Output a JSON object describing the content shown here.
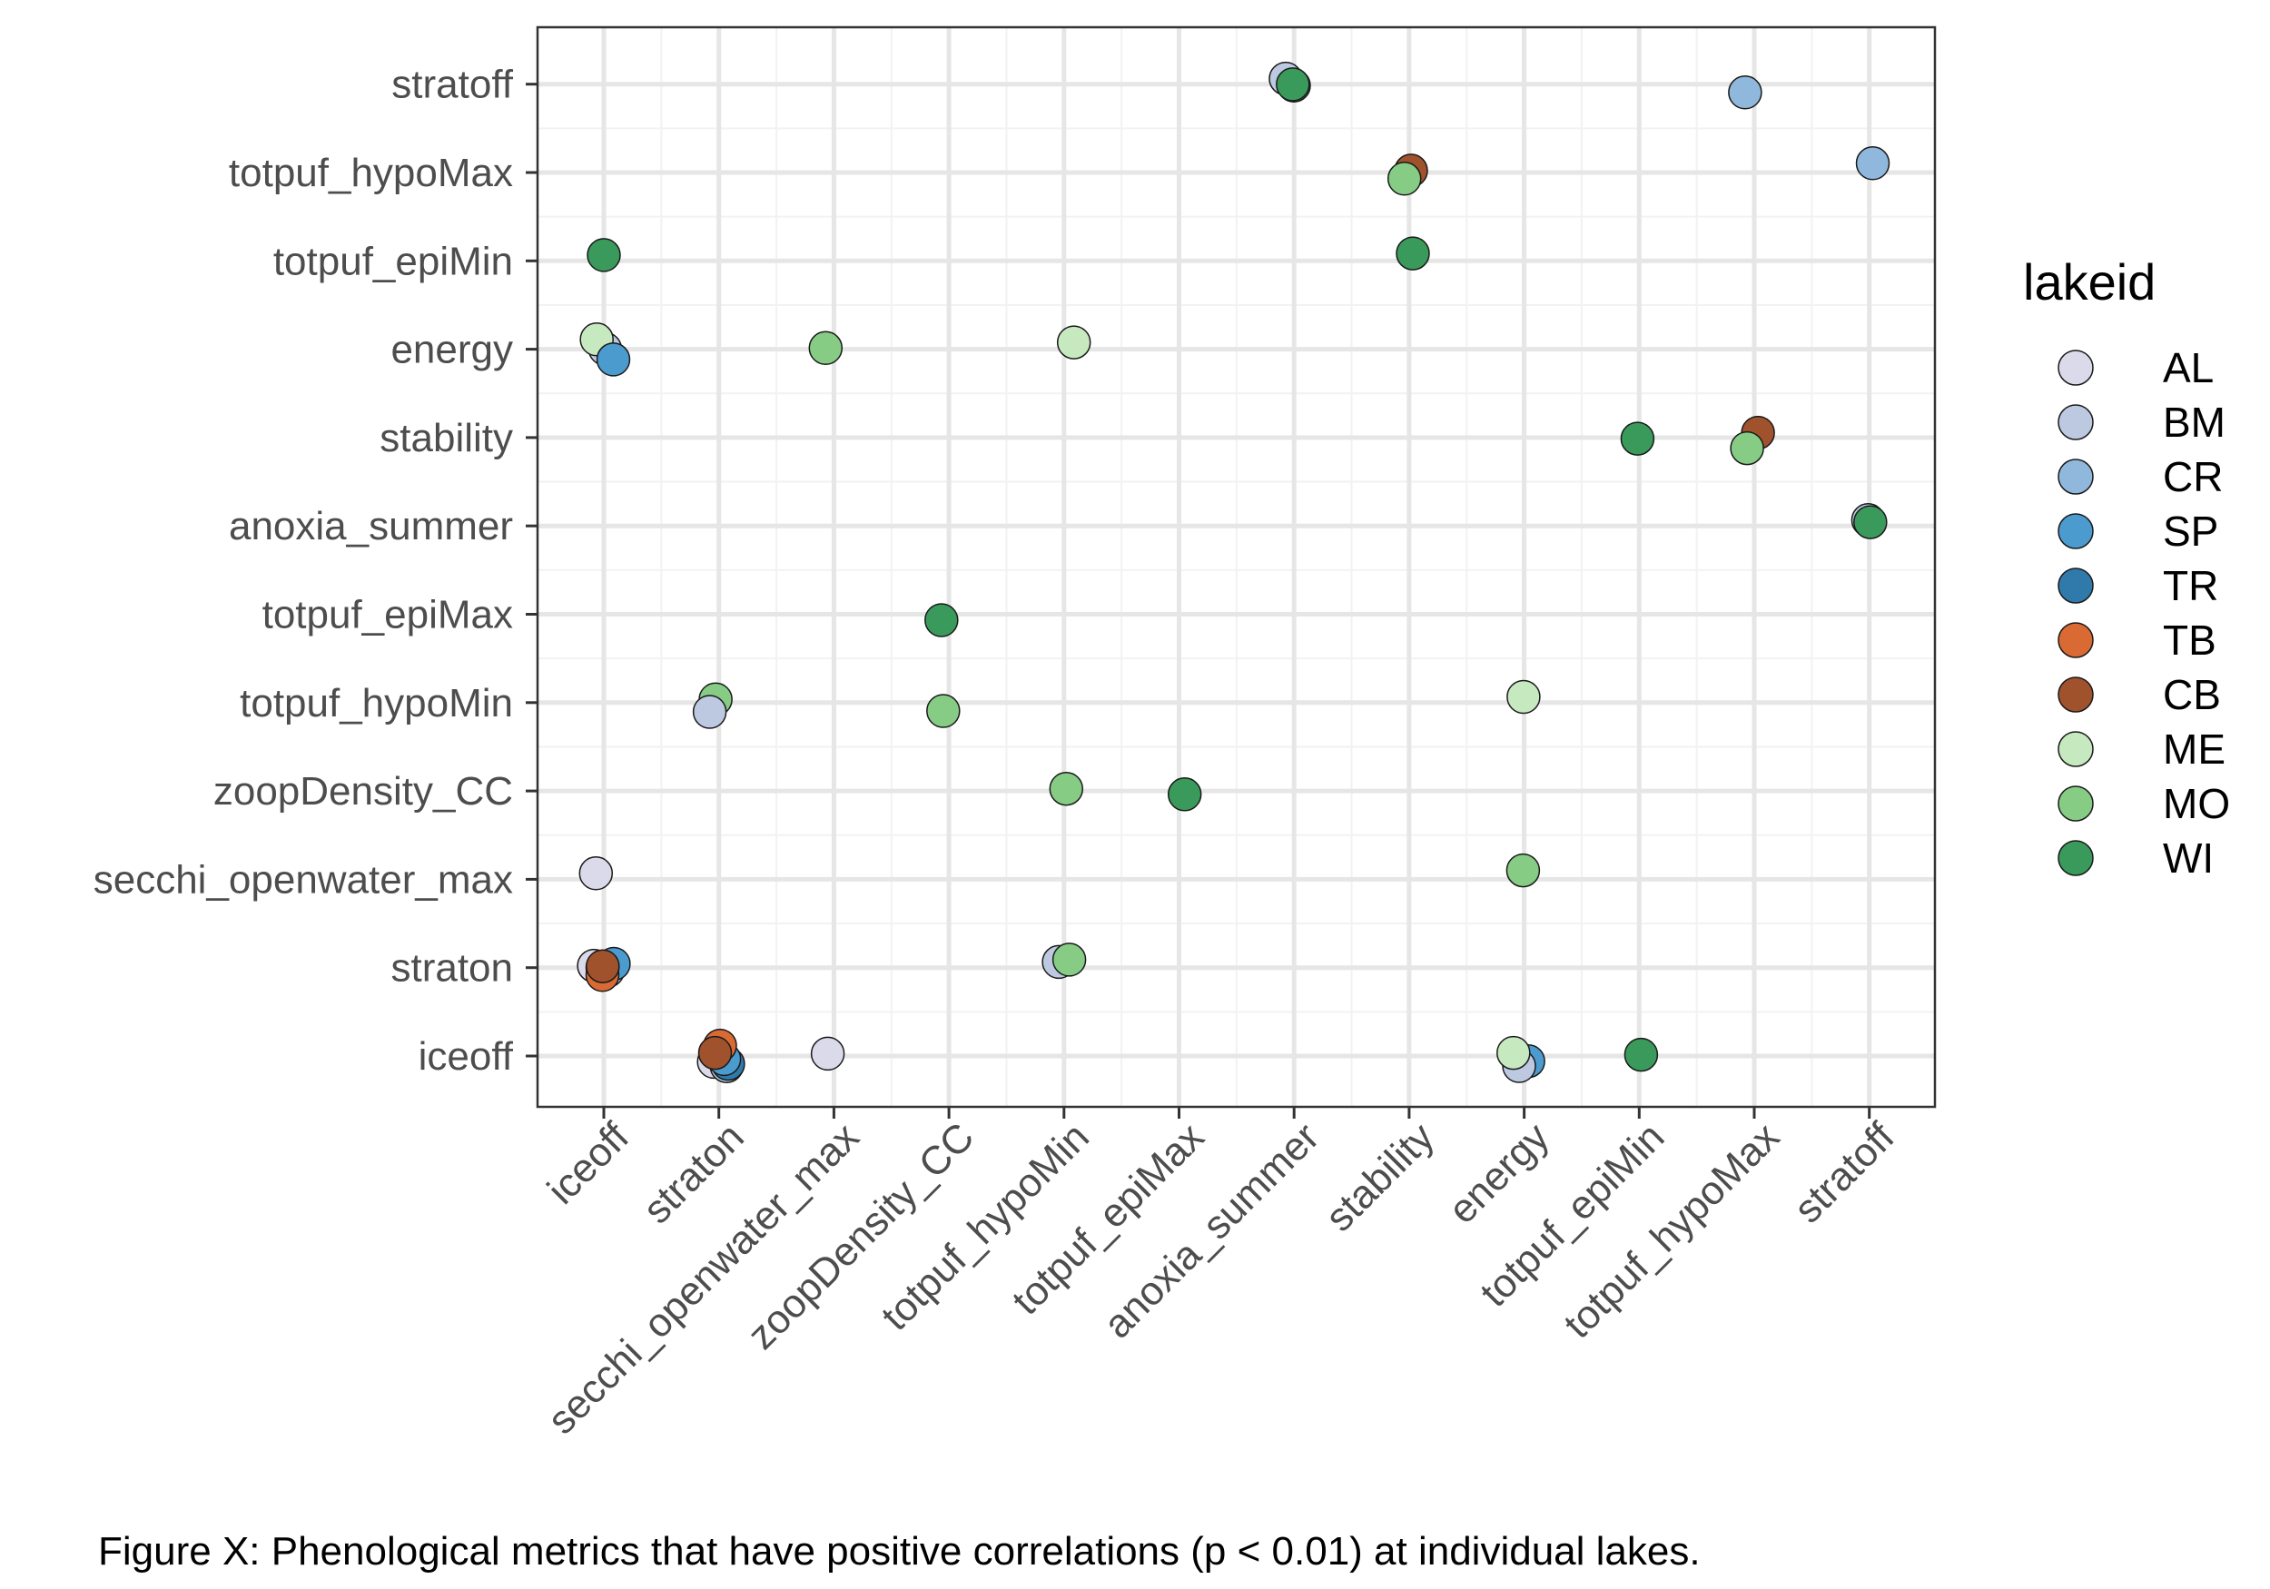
{
  "chart_data": {
    "type": "scatter",
    "title": "",
    "xlabel": "",
    "ylabel": "",
    "caption": "Figure X: Phenological metrics that have positive correlations (p < 0.01) at individual lakes.",
    "x_categories": [
      "iceoff",
      "straton",
      "secchi_openwater_max",
      "zoopDensity_CC",
      "totpuf_hypoMin",
      "totpuf_epiMax",
      "anoxia_summer",
      "stability",
      "energy",
      "totpuf_epiMin",
      "totpuf_hypoMax",
      "stratoff"
    ],
    "y_categories": [
      "iceoff",
      "straton",
      "secchi_openwater_max",
      "zoopDensity_CC",
      "totpuf_hypoMin",
      "totpuf_epiMax",
      "anoxia_summer",
      "stability",
      "energy",
      "totpuf_epiMin",
      "totpuf_hypoMax",
      "stratoff"
    ],
    "grid": true,
    "legend": {
      "title": "lakeid",
      "position": "right",
      "entries": [
        {
          "name": "AL",
          "color": "#dadaeb"
        },
        {
          "name": "BM",
          "color": "#bcc9e1"
        },
        {
          "name": "CR",
          "color": "#8fb8dc"
        },
        {
          "name": "SP",
          "color": "#4c9bcf"
        },
        {
          "name": "TR",
          "color": "#2f7aaa"
        },
        {
          "name": "TB",
          "color": "#d96a34"
        },
        {
          "name": "CB",
          "color": "#a0522d"
        },
        {
          "name": "ME",
          "color": "#c7e9c0"
        },
        {
          "name": "MO",
          "color": "#86cc85"
        },
        {
          "name": "WI",
          "color": "#3a9a5b"
        }
      ]
    },
    "points": [
      {
        "x": "anoxia_summer",
        "y": "stratoff",
        "lake": "WI"
      },
      {
        "x": "anoxia_summer",
        "y": "stratoff",
        "lake": "BM"
      },
      {
        "x": "anoxia_summer",
        "y": "stratoff",
        "lake": "WI"
      },
      {
        "x": "totpuf_hypoMax",
        "y": "stratoff",
        "lake": "CR"
      },
      {
        "x": "stability",
        "y": "totpuf_hypoMax",
        "lake": "CB"
      },
      {
        "x": "stability",
        "y": "totpuf_hypoMax",
        "lake": "MO"
      },
      {
        "x": "stratoff",
        "y": "totpuf_hypoMax",
        "lake": "CR"
      },
      {
        "x": "iceoff",
        "y": "totpuf_epiMin",
        "lake": "WI"
      },
      {
        "x": "stability",
        "y": "totpuf_epiMin",
        "lake": "WI"
      },
      {
        "x": "iceoff",
        "y": "energy",
        "lake": "BM"
      },
      {
        "x": "iceoff",
        "y": "energy",
        "lake": "ME"
      },
      {
        "x": "iceoff",
        "y": "energy",
        "lake": "SP"
      },
      {
        "x": "secchi_openwater_max",
        "y": "energy",
        "lake": "MO"
      },
      {
        "x": "totpuf_hypoMin",
        "y": "energy",
        "lake": "ME"
      },
      {
        "x": "totpuf_epiMin",
        "y": "stability",
        "lake": "WI"
      },
      {
        "x": "totpuf_hypoMax",
        "y": "stability",
        "lake": "CB"
      },
      {
        "x": "totpuf_hypoMax",
        "y": "stability",
        "lake": "MO"
      },
      {
        "x": "stratoff",
        "y": "anoxia_summer",
        "lake": "BM"
      },
      {
        "x": "stratoff",
        "y": "anoxia_summer",
        "lake": "WI"
      },
      {
        "x": "zoopDensity_CC",
        "y": "totpuf_epiMax",
        "lake": "WI"
      },
      {
        "x": "straton",
        "y": "totpuf_hypoMin",
        "lake": "MO"
      },
      {
        "x": "straton",
        "y": "totpuf_hypoMin",
        "lake": "BM"
      },
      {
        "x": "zoopDensity_CC",
        "y": "totpuf_hypoMin",
        "lake": "MO"
      },
      {
        "x": "energy",
        "y": "totpuf_hypoMin",
        "lake": "ME"
      },
      {
        "x": "totpuf_hypoMin",
        "y": "zoopDensity_CC",
        "lake": "MO"
      },
      {
        "x": "totpuf_epiMax",
        "y": "zoopDensity_CC",
        "lake": "WI"
      },
      {
        "x": "iceoff",
        "y": "secchi_openwater_max",
        "lake": "AL"
      },
      {
        "x": "energy",
        "y": "secchi_openwater_max",
        "lake": "MO"
      },
      {
        "x": "iceoff",
        "y": "straton",
        "lake": "AL"
      },
      {
        "x": "iceoff",
        "y": "straton",
        "lake": "BM"
      },
      {
        "x": "iceoff",
        "y": "straton",
        "lake": "SP"
      },
      {
        "x": "iceoff",
        "y": "straton",
        "lake": "TR"
      },
      {
        "x": "iceoff",
        "y": "straton",
        "lake": "TB"
      },
      {
        "x": "iceoff",
        "y": "straton",
        "lake": "CB"
      },
      {
        "x": "totpuf_hypoMin",
        "y": "straton",
        "lake": "BM"
      },
      {
        "x": "totpuf_hypoMin",
        "y": "straton",
        "lake": "MO"
      },
      {
        "x": "straton",
        "y": "iceoff",
        "lake": "AL"
      },
      {
        "x": "straton",
        "y": "iceoff",
        "lake": "BM"
      },
      {
        "x": "straton",
        "y": "iceoff",
        "lake": "TR"
      },
      {
        "x": "straton",
        "y": "iceoff",
        "lake": "SP"
      },
      {
        "x": "straton",
        "y": "iceoff",
        "lake": "TB"
      },
      {
        "x": "straton",
        "y": "iceoff",
        "lake": "CB"
      },
      {
        "x": "secchi_openwater_max",
        "y": "iceoff",
        "lake": "AL"
      },
      {
        "x": "energy",
        "y": "iceoff",
        "lake": "SP"
      },
      {
        "x": "energy",
        "y": "iceoff",
        "lake": "BM"
      },
      {
        "x": "energy",
        "y": "iceoff",
        "lake": "ME"
      },
      {
        "x": "totpuf_epiMin",
        "y": "iceoff",
        "lake": "WI"
      }
    ]
  }
}
